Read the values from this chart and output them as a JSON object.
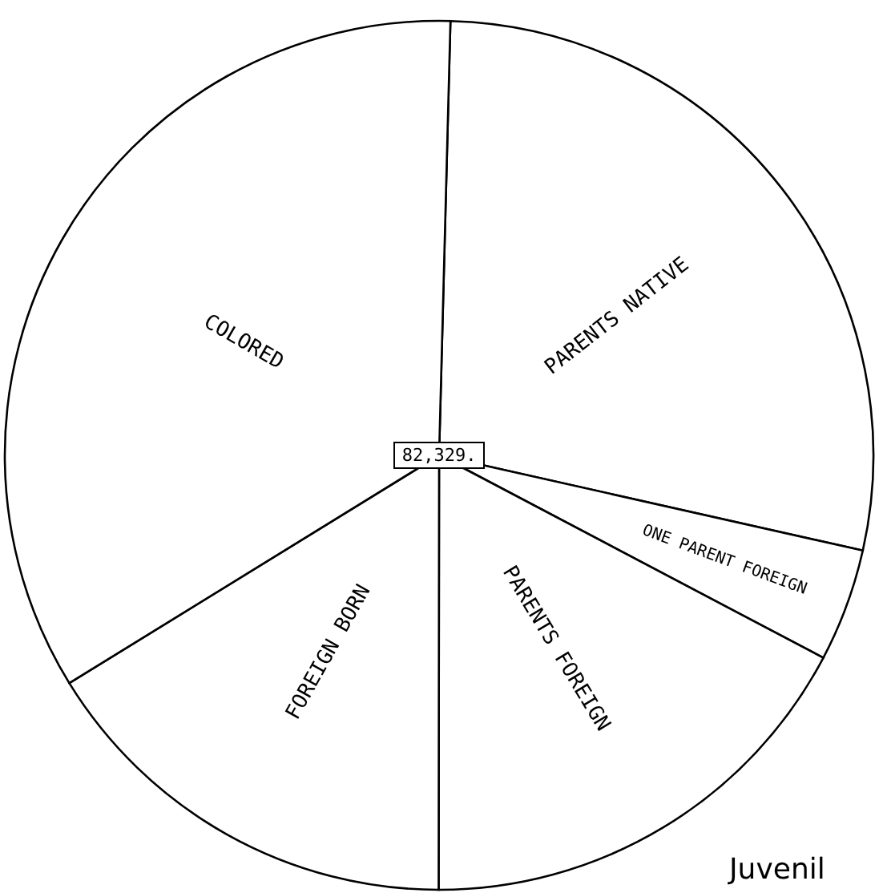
{
  "chart_data": {
    "type": "pie",
    "categories": [
      "PARENTS NATIVE",
      "ONE PARENT FOREIGN",
      "PARENTS FOREIGN",
      "FOREIGN BORN",
      "COLORED"
    ],
    "values": [
      28.1,
      4.2,
      17.3,
      16.2,
      34.2
    ],
    "colors": [
      "#ffffff",
      "#ffffff",
      "#ffffff",
      "#ffffff",
      "#ffffff"
    ],
    "annotations": [
      "82,329.",
      "Juvenil"
    ]
  }
}
